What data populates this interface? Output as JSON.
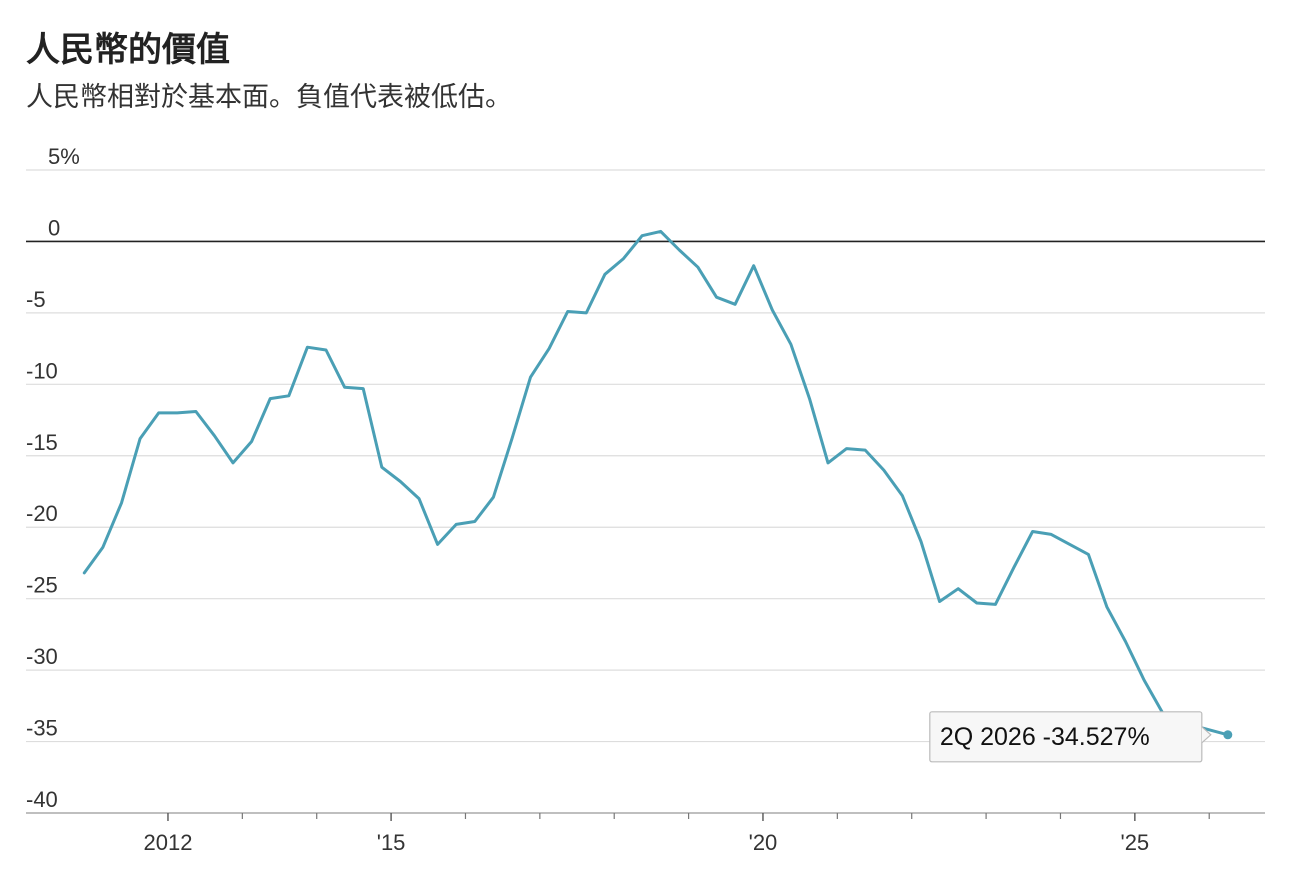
{
  "header": {
    "title": "人民幣的價值",
    "subtitle": "人民幣相對於基本面。負值代表被低估。"
  },
  "colors": {
    "line": "#4a9fb5",
    "grid": "#dddddd",
    "zero_line": "#222222",
    "tooltip_bg": "#f7f7f7",
    "tooltip_border": "#bbbbbb"
  },
  "chart_data": {
    "type": "line",
    "title": "人民幣的價值",
    "subtitle": "人民幣相對於基本面。負值代表被低估。",
    "ylim": [
      -40,
      5
    ],
    "ytick_values": [
      5,
      0,
      -5,
      -10,
      -15,
      -20,
      -25,
      -30,
      -35,
      -40
    ],
    "ytick_labels": [
      "5%",
      "0",
      "-5",
      "-10",
      "-15",
      "-20",
      "-25",
      "-30",
      "-35",
      "-40"
    ],
    "xlim": [
      2010.75,
      2026.75
    ],
    "xtick_labels": [
      {
        "x": 2012.0,
        "label": "2012"
      },
      {
        "x": 2015.0,
        "label": "'15"
      },
      {
        "x": 2020.0,
        "label": "'20"
      },
      {
        "x": 2025.0,
        "label": "'25"
      }
    ],
    "minor_ticks": [
      2013,
      2014,
      2016,
      2017,
      2018,
      2019,
      2021,
      2022,
      2023,
      2024,
      2026
    ],
    "grid": true,
    "legend": "none",
    "series": [
      {
        "points": [
          [
            2010.875,
            -23.2
          ],
          [
            2011.125,
            -21.4
          ],
          [
            2011.375,
            -18.3
          ],
          [
            2011.625,
            -13.8
          ],
          [
            2011.875,
            -12.0
          ],
          [
            2012.125,
            -12.0
          ],
          [
            2012.375,
            -11.9
          ],
          [
            2012.625,
            -13.6
          ],
          [
            2012.875,
            -15.5
          ],
          [
            2013.125,
            -14.0
          ],
          [
            2013.375,
            -11.0
          ],
          [
            2013.625,
            -10.8
          ],
          [
            2013.875,
            -7.4
          ],
          [
            2014.125,
            -7.6
          ],
          [
            2014.375,
            -10.2
          ],
          [
            2014.625,
            -10.3
          ],
          [
            2014.875,
            -15.8
          ],
          [
            2015.125,
            -16.8
          ],
          [
            2015.375,
            -18.0
          ],
          [
            2015.625,
            -21.2
          ],
          [
            2015.875,
            -19.8
          ],
          [
            2016.125,
            -19.6
          ],
          [
            2016.375,
            -17.9
          ],
          [
            2016.625,
            -13.8
          ],
          [
            2016.875,
            -9.5
          ],
          [
            2017.125,
            -7.5
          ],
          [
            2017.375,
            -4.9
          ],
          [
            2017.625,
            -5.0
          ],
          [
            2017.875,
            -2.3
          ],
          [
            2018.125,
            -1.2
          ],
          [
            2018.375,
            0.4
          ],
          [
            2018.625,
            0.7
          ],
          [
            2018.875,
            -0.6
          ],
          [
            2019.125,
            -1.8
          ],
          [
            2019.375,
            -3.9
          ],
          [
            2019.625,
            -4.4
          ],
          [
            2019.875,
            -1.7
          ],
          [
            2020.125,
            -4.8
          ],
          [
            2020.375,
            -7.2
          ],
          [
            2020.625,
            -11.0
          ],
          [
            2020.875,
            -15.5
          ],
          [
            2021.125,
            -14.5
          ],
          [
            2021.375,
            -14.6
          ],
          [
            2021.625,
            -16.0
          ],
          [
            2021.875,
            -17.8
          ],
          [
            2022.125,
            -21.0
          ],
          [
            2022.375,
            -25.2
          ],
          [
            2022.625,
            -24.3
          ],
          [
            2022.875,
            -25.3
          ],
          [
            2023.125,
            -25.4
          ],
          [
            2023.375,
            -22.8
          ],
          [
            2023.625,
            -20.3
          ],
          [
            2023.875,
            -20.5
          ],
          [
            2024.125,
            -21.2
          ],
          [
            2024.375,
            -21.9
          ],
          [
            2024.625,
            -25.6
          ],
          [
            2024.875,
            -28.0
          ],
          [
            2025.125,
            -30.7
          ],
          [
            2025.375,
            -33.0
          ],
          [
            2025.625,
            -33.5
          ],
          [
            2025.875,
            -34.0
          ],
          [
            2026.25,
            -34.527
          ]
        ]
      }
    ],
    "annotation": {
      "x": 2026.25,
      "y": -34.527,
      "text": "2Q 2026 -34.527%"
    }
  }
}
